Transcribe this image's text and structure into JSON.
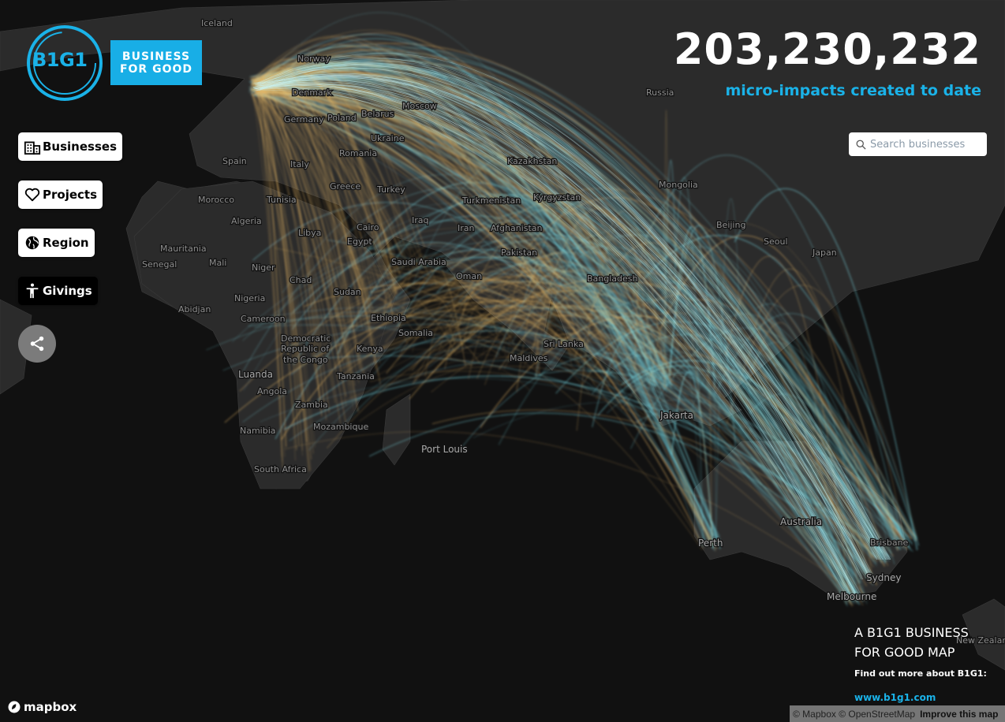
{
  "brand": {
    "logo_text": "B1G1",
    "logo_line1": "BUSINESS",
    "logo_line2": "FOR GOOD",
    "accent_color": "#1ab2e8"
  },
  "menu": [
    {
      "label": "Businesses",
      "icon": "building-icon"
    },
    {
      "label": "Projects",
      "icon": "heart-icon"
    },
    {
      "label": "Region",
      "icon": "globe-icon"
    },
    {
      "label": "Givings",
      "icon": "person-icon"
    }
  ],
  "share": {
    "icon": "share-icon"
  },
  "counter": {
    "value": "203,230,232",
    "label": "micro-impacts created to date"
  },
  "search": {
    "placeholder": "Search businesses",
    "value": "",
    "icon": "search-icon"
  },
  "info": {
    "title_line1": "A B1G1 BUSINESS",
    "title_line2": "FOR GOOD MAP",
    "subtitle": "Find out more about B1G1:",
    "link": "www.b1g1.com"
  },
  "attribution": {
    "mapbox": "mapbox",
    "text": "© Mapbox © OpenStreetMap",
    "improve": "Improve this map"
  },
  "map": {
    "arc_colors": {
      "gold": "#e8b866",
      "cyan": "#7fe6f2"
    },
    "places": [
      "Iceland",
      "Norway",
      "Denmark",
      "Germany",
      "Poland",
      "Belarus",
      "Moscow",
      "Russia",
      "Ukraine",
      "Romania",
      "Kazakhstan",
      "Mongolia",
      "Spain",
      "Italy",
      "Greece",
      "Turkey",
      "Turkmenistan",
      "Kyrgyzstan",
      "Beijing",
      "Seoul",
      "Japan",
      "Morocco",
      "Tunisia",
      "Algeria",
      "Libya",
      "Egypt",
      "Cairo",
      "Iraq",
      "Iran",
      "Afghanistan",
      "Pakistan",
      "Saudi Arabia",
      "Oman",
      "Mauritania",
      "Mali",
      "Niger",
      "Chad",
      "Sudan",
      "Senegal",
      "Nigeria",
      "Abidjan",
      "Cameroon",
      "Ethiopia",
      "Somalia",
      "Kenya",
      "Democratic",
      "Republic of",
      "the Congo",
      "Luanda",
      "Angola",
      "Tanzania",
      "Zambia",
      "Namibia",
      "Mozambique",
      "South Africa",
      "Port Louis",
      "Maldives",
      "Sri Lanka",
      "Bangladesh",
      "Jakarta",
      "Australia",
      "Perth",
      "Brisbane",
      "Sydney",
      "Melbourne",
      "New Zealand"
    ]
  }
}
